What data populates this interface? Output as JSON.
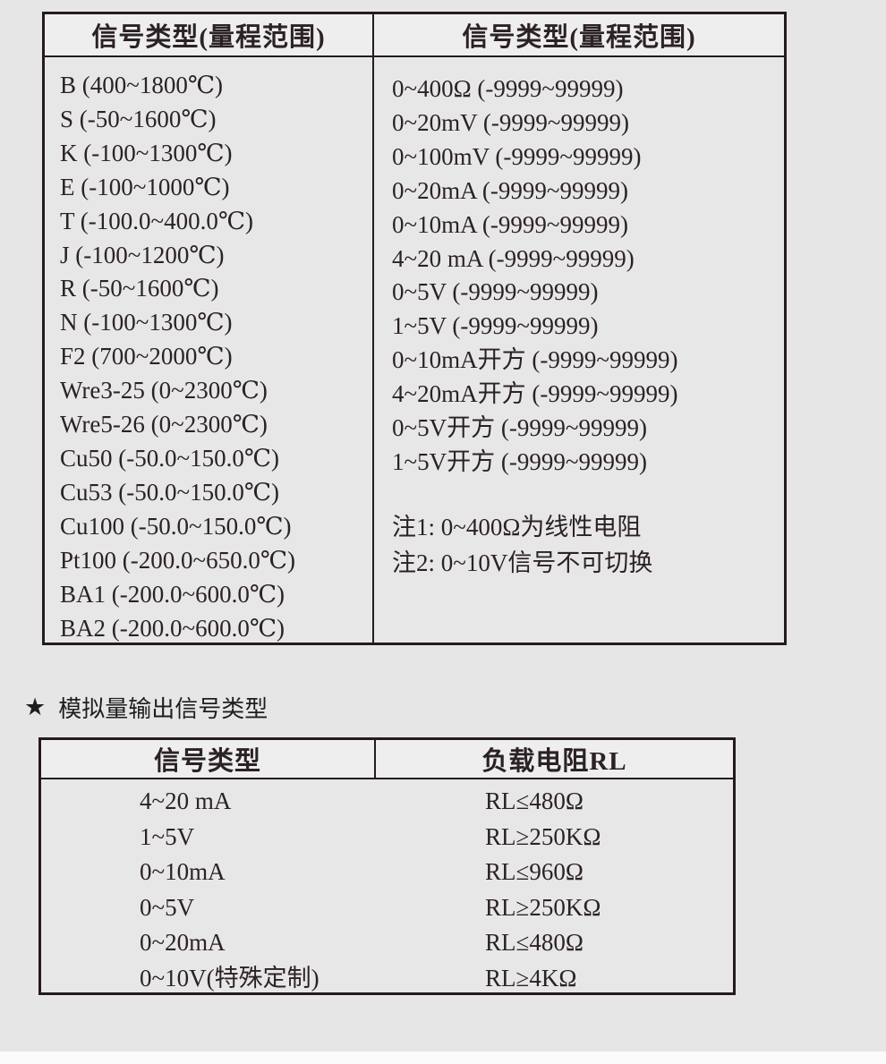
{
  "colors": {
    "page_bg": "#e7e6e7",
    "table_border": "#241b1b",
    "header_bg": "#efeeef",
    "text": "#2b2224"
  },
  "signal_table": {
    "headers": [
      "信号类型(量程范围)",
      "信号类型(量程范围)"
    ],
    "thermocouple_rows": [
      "B (400~1800℃)",
      "S (-50~1600℃)",
      "K (-100~1300℃)",
      "E (-100~1000℃)",
      "T (-100.0~400.0℃)",
      "J (-100~1200℃)",
      "R (-50~1600℃)",
      "N (-100~1300℃)",
      "F2 (700~2000℃)",
      "Wre3-25 (0~2300℃)",
      "Wre5-26 (0~2300℃)",
      "Cu50 (-50.0~150.0℃)",
      "Cu53 (-50.0~150.0℃)",
      "Cu100 (-50.0~150.0℃)",
      "Pt100 (-200.0~650.0℃)",
      "BA1 (-200.0~600.0℃)",
      "BA2 (-200.0~600.0℃)"
    ],
    "analog_rows": [
      "0~400Ω (-9999~99999)",
      "0~20mV (-9999~99999)",
      "0~100mV (-9999~99999)",
      "0~20mA (-9999~99999)",
      "0~10mA (-9999~99999)",
      "4~20 mA (-9999~99999)",
      "0~5V (-9999~99999)",
      "1~5V (-9999~99999)",
      "0~10mA开方 (-9999~99999)",
      "4~20mA开方 (-9999~99999)",
      "0~5V开方 (-9999~99999)",
      "1~5V开方 (-9999~99999)"
    ],
    "notes": [
      "注1: 0~400Ω为线性电阻",
      "注2: 0~10V信号不可切换"
    ]
  },
  "section_label": {
    "star": "★",
    "text": "模拟量输出信号类型"
  },
  "output_table": {
    "headers": [
      "信号类型",
      "负载电阻RL"
    ],
    "rows": [
      {
        "signal": "4~20 mA",
        "load": "RL≤480Ω"
      },
      {
        "signal": "1~5V",
        "load": "RL≥250KΩ"
      },
      {
        "signal": "0~10mA",
        "load": "RL≤960Ω"
      },
      {
        "signal": "0~5V",
        "load": "RL≥250KΩ"
      },
      {
        "signal": "0~20mA",
        "load": "RL≤480Ω"
      },
      {
        "signal": "0~10V(特殊定制)",
        "load": "RL≥4KΩ"
      }
    ]
  }
}
